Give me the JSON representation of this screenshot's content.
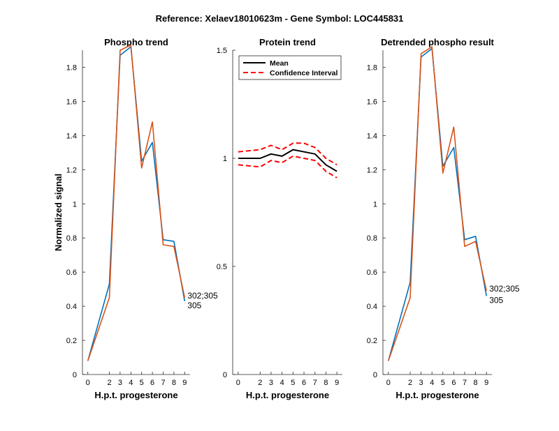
{
  "figure": {
    "suptitle": "Reference:  Xelaev18010623m - Gene Symbol:  LOC445831"
  },
  "colors": {
    "series_blue": "#0072BD",
    "series_orange": "#D95319",
    "mean": "#000000",
    "ci": "#FF0000",
    "axis": "#262626"
  },
  "chart_data": [
    {
      "type": "line",
      "title": "Phospho trend",
      "xlabel": "H.p.t. progesterone",
      "ylabel": "Normalized signal",
      "xlim": [
        -0.5,
        9.5
      ],
      "ylim": [
        0,
        1.9
      ],
      "xticks": [
        0,
        2,
        3,
        4,
        5,
        6,
        7,
        8,
        9
      ],
      "yticks": [
        0,
        0.2,
        0.4,
        0.6,
        0.8,
        1,
        1.2,
        1.4,
        1.6,
        1.8
      ],
      "ytick_labels": [
        "0",
        "0.2",
        "0.4",
        "0.6",
        "0.8",
        "1",
        "1.2",
        "1.4",
        "1.6",
        "1.8"
      ],
      "x": [
        0,
        2,
        3,
        4,
        5,
        6,
        7,
        8,
        9
      ],
      "series": [
        {
          "name": "305",
          "color_key": "series_blue",
          "values": [
            0.08,
            0.53,
            1.87,
            1.92,
            1.25,
            1.36,
            0.79,
            0.78,
            0.43
          ]
        },
        {
          "name": "302;305",
          "color_key": "series_orange",
          "values": [
            0.08,
            0.45,
            1.9,
            1.93,
            1.21,
            1.48,
            0.76,
            0.75,
            0.45
          ]
        }
      ],
      "annotations": [
        "302;305",
        "305"
      ]
    },
    {
      "type": "line",
      "title": "Protein trend",
      "xlabel": "H.p.t. progesterone",
      "ylabel": "",
      "xlim": [
        -0.5,
        9.5
      ],
      "ylim": [
        0,
        1.5
      ],
      "xticks": [
        0,
        2,
        3,
        4,
        5,
        6,
        7,
        8,
        9
      ],
      "yticks": [
        0,
        0.5,
        1,
        1.5
      ],
      "ytick_labels": [
        "0",
        "0.5",
        "1",
        "1.5"
      ],
      "x": [
        0,
        2,
        3,
        4,
        5,
        6,
        7,
        8,
        9
      ],
      "series": [
        {
          "name": "Mean",
          "color_key": "mean",
          "dashed": false,
          "values": [
            1.0,
            1.0,
            1.02,
            1.01,
            1.04,
            1.03,
            1.02,
            0.97,
            0.94
          ]
        },
        {
          "name": "Confidence Interval",
          "color_key": "ci",
          "dashed": true,
          "values": [
            1.03,
            1.04,
            1.06,
            1.04,
            1.07,
            1.07,
            1.05,
            1.0,
            0.97
          ]
        },
        {
          "name": "Confidence Interval",
          "color_key": "ci",
          "dashed": true,
          "values": [
            0.97,
            0.96,
            0.99,
            0.98,
            1.01,
            1.0,
            0.99,
            0.94,
            0.91
          ]
        }
      ],
      "legend": [
        {
          "label": "Mean",
          "color_key": "mean",
          "dashed": false
        },
        {
          "label": "Confidence Interval",
          "color_key": "ci",
          "dashed": true
        }
      ],
      "legend_position": "top-right"
    },
    {
      "type": "line",
      "title": "Detrended phospho result",
      "xlabel": "H.p.t. progesterone",
      "ylabel": "",
      "xlim": [
        -0.5,
        9.5
      ],
      "ylim": [
        0,
        1.9
      ],
      "xticks": [
        0,
        2,
        3,
        4,
        5,
        6,
        7,
        8,
        9
      ],
      "yticks": [
        0,
        0.2,
        0.4,
        0.6,
        0.8,
        1,
        1.2,
        1.4,
        1.6,
        1.8
      ],
      "ytick_labels": [
        "0",
        "0.2",
        "0.4",
        "0.6",
        "0.8",
        "1",
        "1.2",
        "1.4",
        "1.6",
        "1.8"
      ],
      "x": [
        0,
        2,
        3,
        4,
        5,
        6,
        7,
        8,
        9
      ],
      "series": [
        {
          "name": "305",
          "color_key": "series_blue",
          "values": [
            0.08,
            0.54,
            1.86,
            1.91,
            1.22,
            1.33,
            0.79,
            0.81,
            0.46
          ]
        },
        {
          "name": "302;305",
          "color_key": "series_orange",
          "values": [
            0.08,
            0.45,
            1.88,
            1.92,
            1.18,
            1.45,
            0.75,
            0.78,
            0.49
          ]
        }
      ],
      "annotations": [
        "302;305",
        "305"
      ]
    }
  ]
}
